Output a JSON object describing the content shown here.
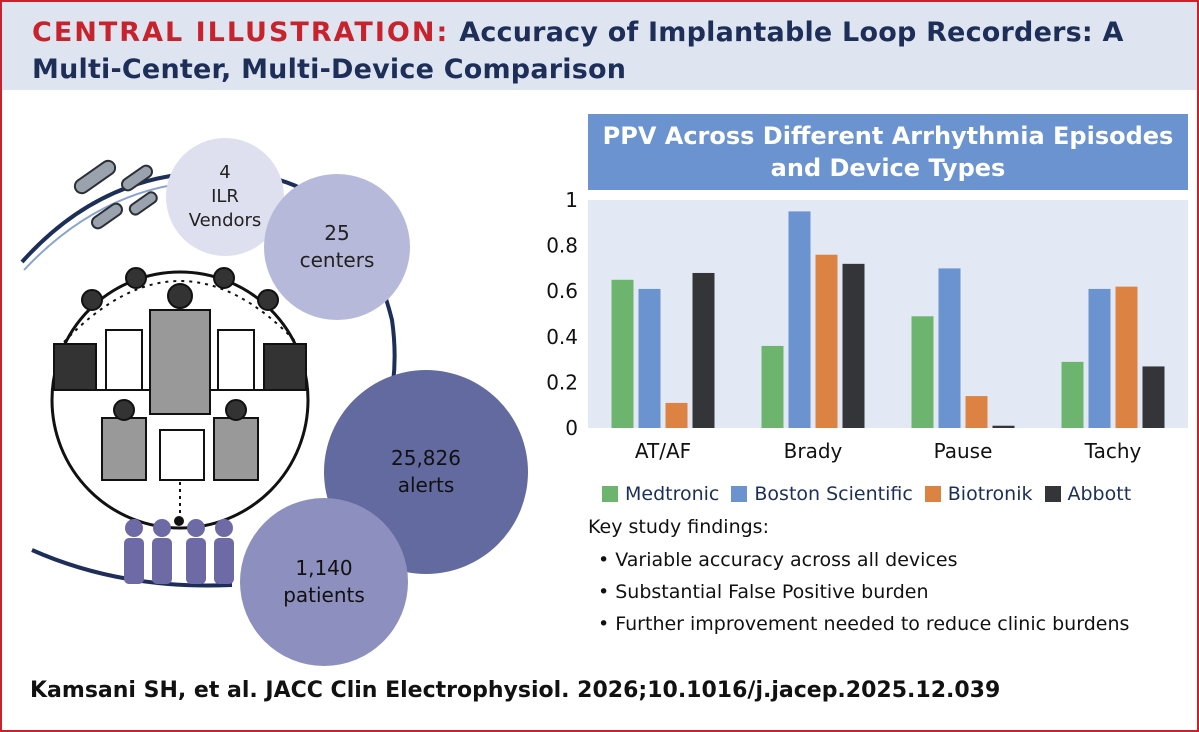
{
  "header": {
    "lead": "CENTRAL ILLUSTRATION:",
    "title": "Accuracy of Implantable Loop Recorders: A Multi-Center, Multi-Device Comparison"
  },
  "illustration": {
    "bubbles": [
      {
        "text": "4\nILR\nVendors"
      },
      {
        "text": "25\ncenters"
      },
      {
        "text": "25,826\nalerts"
      },
      {
        "text": "1,140\npatients"
      }
    ]
  },
  "chart_data": {
    "type": "bar",
    "title": "PPV Across Different Arrhythmia Episodes\nand Device Types",
    "categories": [
      "AT/AF",
      "Brady",
      "Pause",
      "Tachy"
    ],
    "series": [
      {
        "name": "Medtronic",
        "color": "#6db56f",
        "values": [
          0.65,
          0.36,
          0.49,
          0.29
        ]
      },
      {
        "name": "Boston Scientific",
        "color": "#6a93cf",
        "values": [
          0.61,
          0.95,
          0.7,
          0.61
        ]
      },
      {
        "name": "Biotronik",
        "color": "#dc8343",
        "values": [
          0.11,
          0.76,
          0.14,
          0.62
        ]
      },
      {
        "name": "Abbott",
        "color": "#333538",
        "values": [
          0.68,
          0.72,
          0.01,
          0.27
        ]
      }
    ],
    "yticks": [
      "0",
      "0.2",
      "0.4",
      "0.6",
      "0.8",
      "1"
    ],
    "ylim": [
      0,
      1
    ],
    "xlabel": "",
    "ylabel": ""
  },
  "findings": {
    "heading": "Key study findings:",
    "items": [
      "• Variable accuracy across all devices",
      "• Substantial False Positive burden",
      "• Further improvement needed to reduce clinic burdens"
    ]
  },
  "citation": "Kamsani SH, et al. JACC Clin Electrophysiol. 2026;10.1016/j.jacep.2025.12.039"
}
